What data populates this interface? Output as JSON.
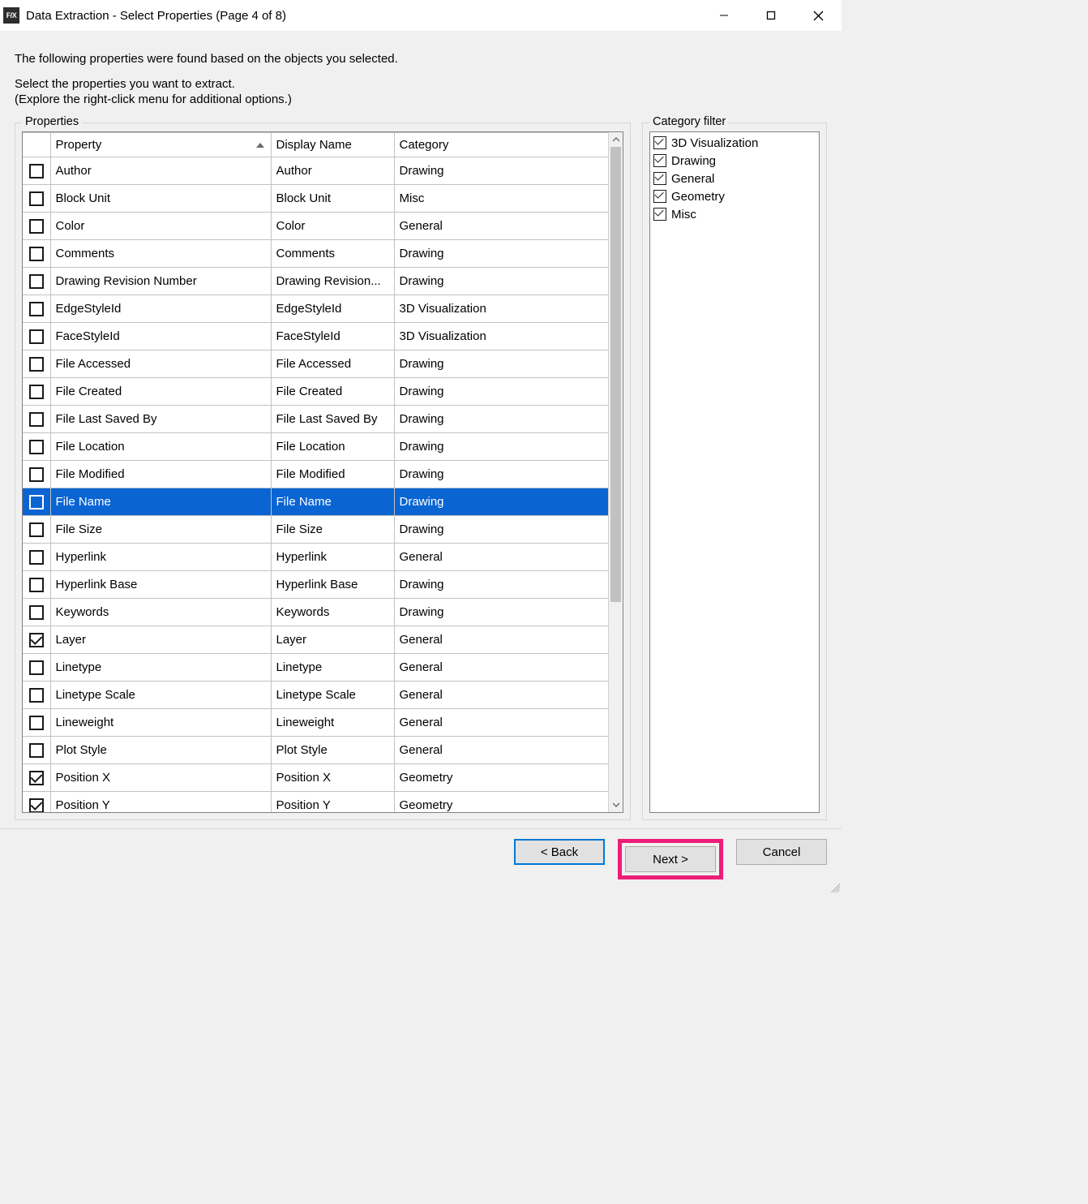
{
  "window": {
    "title": "Data Extraction - Select Properties (Page 4 of 8)",
    "app_icon_text": "F/X"
  },
  "intro": {
    "line1": "The following properties were found based on the objects you selected.",
    "line2": "Select the properties you want to extract.",
    "line3": "(Explore the right-click menu for additional options.)"
  },
  "properties_group_label": "Properties",
  "filter_group_label": "Category filter",
  "columns": {
    "property": "Property",
    "display_name": "Display Name",
    "category": "Category"
  },
  "rows": [
    {
      "checked": false,
      "selected": false,
      "property": "Author",
      "display": "Author",
      "category": "Drawing"
    },
    {
      "checked": false,
      "selected": false,
      "property": "Block Unit",
      "display": "Block Unit",
      "category": "Misc"
    },
    {
      "checked": false,
      "selected": false,
      "property": "Color",
      "display": "Color",
      "category": "General"
    },
    {
      "checked": false,
      "selected": false,
      "property": "Comments",
      "display": "Comments",
      "category": "Drawing"
    },
    {
      "checked": false,
      "selected": false,
      "property": "Drawing Revision Number",
      "display": "Drawing Revision...",
      "category": "Drawing"
    },
    {
      "checked": false,
      "selected": false,
      "property": "EdgeStyleId",
      "display": "EdgeStyleId",
      "category": "3D Visualization"
    },
    {
      "checked": false,
      "selected": false,
      "property": "FaceStyleId",
      "display": "FaceStyleId",
      "category": "3D Visualization"
    },
    {
      "checked": false,
      "selected": false,
      "property": "File Accessed",
      "display": "File Accessed",
      "category": "Drawing"
    },
    {
      "checked": false,
      "selected": false,
      "property": "File Created",
      "display": "File Created",
      "category": "Drawing"
    },
    {
      "checked": false,
      "selected": false,
      "property": "File Last Saved By",
      "display": "File Last Saved By",
      "category": "Drawing"
    },
    {
      "checked": false,
      "selected": false,
      "property": "File Location",
      "display": "File Location",
      "category": "Drawing"
    },
    {
      "checked": false,
      "selected": false,
      "property": "File Modified",
      "display": "File Modified",
      "category": "Drawing"
    },
    {
      "checked": false,
      "selected": true,
      "property": "File Name",
      "display": "File Name",
      "category": "Drawing"
    },
    {
      "checked": false,
      "selected": false,
      "property": "File Size",
      "display": "File Size",
      "category": "Drawing"
    },
    {
      "checked": false,
      "selected": false,
      "property": "Hyperlink",
      "display": "Hyperlink",
      "category": "General"
    },
    {
      "checked": false,
      "selected": false,
      "property": "Hyperlink Base",
      "display": "Hyperlink Base",
      "category": "Drawing"
    },
    {
      "checked": false,
      "selected": false,
      "property": "Keywords",
      "display": "Keywords",
      "category": "Drawing"
    },
    {
      "checked": true,
      "selected": false,
      "property": "Layer",
      "display": "Layer",
      "category": "General"
    },
    {
      "checked": false,
      "selected": false,
      "property": "Linetype",
      "display": "Linetype",
      "category": "General"
    },
    {
      "checked": false,
      "selected": false,
      "property": "Linetype Scale",
      "display": "Linetype Scale",
      "category": "General"
    },
    {
      "checked": false,
      "selected": false,
      "property": "Lineweight",
      "display": "Lineweight",
      "category": "General"
    },
    {
      "checked": false,
      "selected": false,
      "property": "Plot Style",
      "display": "Plot Style",
      "category": "General"
    },
    {
      "checked": true,
      "selected": false,
      "property": "Position X",
      "display": "Position X",
      "category": "Geometry"
    },
    {
      "checked": true,
      "selected": false,
      "property": "Position Y",
      "display": "Position Y",
      "category": "Geometry"
    }
  ],
  "filters": [
    {
      "checked": true,
      "label": "3D Visualization"
    },
    {
      "checked": true,
      "label": "Drawing"
    },
    {
      "checked": true,
      "label": "General"
    },
    {
      "checked": true,
      "label": "Geometry"
    },
    {
      "checked": true,
      "label": "Misc"
    }
  ],
  "buttons": {
    "back": "< Back",
    "next": "Next >",
    "cancel": "Cancel"
  },
  "style": {
    "selection_bg": "#0a64d2",
    "selection_fg": "#ffffff",
    "highlight_border": "#ec1e79",
    "default_btn_border": "#0078d7"
  }
}
